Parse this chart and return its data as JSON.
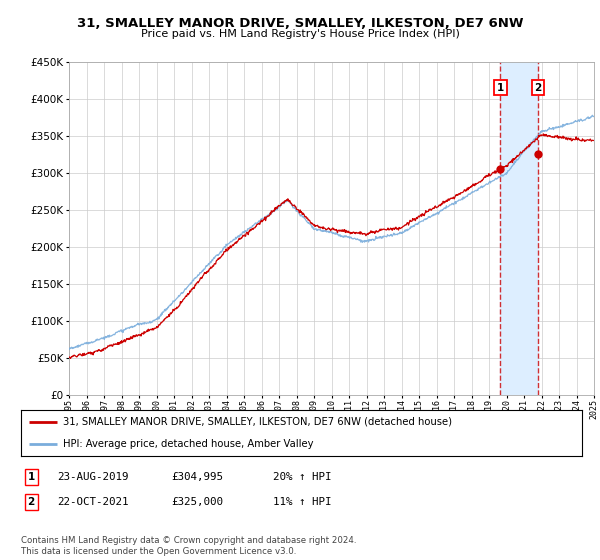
{
  "title": "31, SMALLEY MANOR DRIVE, SMALLEY, ILKESTON, DE7 6NW",
  "subtitle": "Price paid vs. HM Land Registry's House Price Index (HPI)",
  "ylim": [
    0,
    450000
  ],
  "yticks": [
    0,
    50000,
    100000,
    150000,
    200000,
    250000,
    300000,
    350000,
    400000,
    450000
  ],
  "ytick_labels": [
    "£0",
    "£50K",
    "£100K",
    "£150K",
    "£200K",
    "£250K",
    "£300K",
    "£350K",
    "£400K",
    "£450K"
  ],
  "x_start_year": 1995,
  "x_end_year": 2025,
  "hpi_color": "#7aaddc",
  "sale_color": "#cc0000",
  "bg_color": "#ffffff",
  "grid_color": "#cccccc",
  "highlight_color": "#ddeeff",
  "legend_label_sale": "31, SMALLEY MANOR DRIVE, SMALLEY, ILKESTON, DE7 6NW (detached house)",
  "legend_label_hpi": "HPI: Average price, detached house, Amber Valley",
  "sale1_label": "1",
  "sale1_date": "23-AUG-2019",
  "sale1_price": "£304,995",
  "sale1_hpi": "20% ↑ HPI",
  "sale1_year": 2019.65,
  "sale1_value": 304995,
  "sale2_label": "2",
  "sale2_date": "22-OCT-2021",
  "sale2_price": "£325,000",
  "sale2_hpi": "11% ↑ HPI",
  "sale2_year": 2021.8,
  "sale2_value": 325000,
  "footer": "Contains HM Land Registry data © Crown copyright and database right 2024.\nThis data is licensed under the Open Government Licence v3.0."
}
